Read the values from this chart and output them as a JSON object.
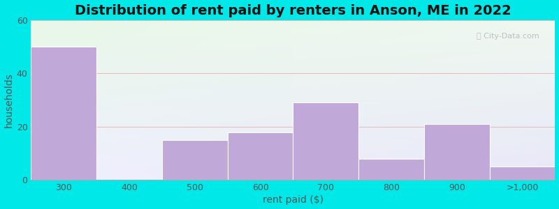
{
  "title": "Distribution of rent paid by renters in Anson, ME in 2022",
  "xlabel": "rent paid ($)",
  "ylabel": "households",
  "categories": [
    "300",
    "400",
    "500",
    "600",
    "700",
    "800",
    "900",
    ">1,000"
  ],
  "values": [
    50,
    0,
    15,
    18,
    29,
    8,
    21,
    5
  ],
  "bar_color": "#c0a8d8",
  "ylim": [
    0,
    60
  ],
  "yticks": [
    0,
    20,
    40,
    60
  ],
  "bg_outer": "#00e8e8",
  "bg_plot_topleft": "#e8f8e8",
  "bg_plot_bottomright": "#e8e8f8",
  "grid_color": "#e8b8b8",
  "title_fontsize": 14,
  "axis_label_fontsize": 10,
  "tick_fontsize": 9,
  "tick_color": "#555555",
  "title_color": "#111111"
}
